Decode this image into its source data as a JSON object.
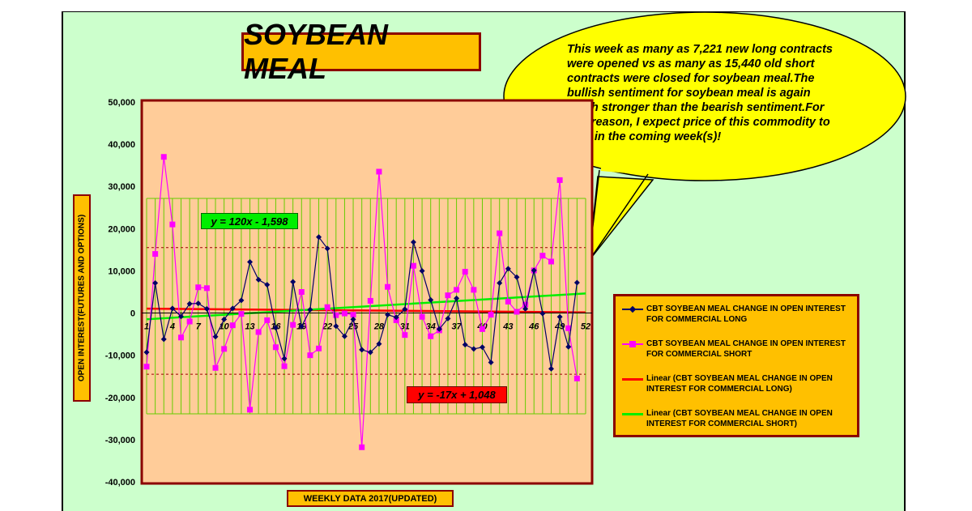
{
  "title": "SOYBEAN MEAL",
  "bubble_text": "This week as many as 7,221 new long contracts were opened vs as many as 15,440 old short contracts were closed for soybean meal.The bullish sentiment for soybean meal is again much stronger than the bearish sentiment.For this reason, I expect price of this commodity to rally in the coming week(s)!",
  "colors": {
    "background": "#ccffcc",
    "plot_area": "#ffcc99",
    "label_boxes": "#ffc000",
    "border": "#8b0000",
    "long_series": "#000066",
    "short_series": "#ff00ff",
    "long_trend": "#ff0000",
    "short_trend": "#00ee00",
    "grid": "#66cc00"
  },
  "chart_data": {
    "type": "line",
    "xlabel": "WEEKLY DATA 2017(UPDATED)",
    "ylabel": "OPEN INTEREST(FUTURES AND OPTIONS)",
    "ylim": [
      -40000,
      50000
    ],
    "yticks": [
      "50,000",
      "40,000",
      "30,000",
      "20,000",
      "10,000",
      "0",
      "-10,000",
      "-20,000",
      "-30,000",
      "-40,000"
    ],
    "ytick_values": [
      50000,
      40000,
      30000,
      20000,
      10000,
      0,
      -10000,
      -20000,
      -30000,
      -40000
    ],
    "x": [
      1,
      2,
      3,
      4,
      5,
      6,
      7,
      8,
      9,
      10,
      11,
      12,
      13,
      14,
      15,
      16,
      17,
      18,
      19,
      20,
      21,
      22,
      23,
      24,
      25,
      26,
      27,
      28,
      29,
      30,
      31,
      32,
      33,
      34,
      35,
      36,
      37,
      38,
      39,
      40,
      41,
      42,
      43,
      44,
      45,
      46,
      47,
      48,
      49,
      50,
      51,
      52
    ],
    "xtick_labels": [
      "1",
      "4",
      "7",
      "10",
      "13",
      "16",
      "19",
      "22",
      "25",
      "28",
      "31",
      "34",
      "37",
      "40",
      "43",
      "46",
      "49",
      "52"
    ],
    "xtick_values": [
      1,
      4,
      7,
      10,
      13,
      16,
      19,
      22,
      25,
      28,
      31,
      34,
      37,
      40,
      43,
      46,
      49,
      52
    ],
    "series": [
      {
        "name": "CBT SOYBEAN MEAL CHANGE IN OPEN INTEREST FOR COMMERCIAL LONG",
        "values": [
          -9300,
          7100,
          -6200,
          1100,
          -800,
          2200,
          2300,
          1000,
          -5600,
          -1500,
          1100,
          3000,
          12100,
          7900,
          6700,
          -3500,
          -10800,
          7400,
          -3200,
          800,
          18000,
          15300,
          -3100,
          -5500,
          -1500,
          -8700,
          -9300,
          -7300,
          -400,
          -1000,
          900,
          16800,
          10000,
          3100,
          -3800,
          -1300,
          3500,
          -7500,
          -8500,
          -8100,
          -11700,
          7100,
          10500,
          8500,
          1000,
          10100,
          -100,
          -13200,
          -900,
          -8000,
          7200,
          null
        ]
      },
      {
        "name": "CBT SOYBEAN MEAL CHANGE IN OPEN INTEREST FOR COMMERCIAL SHORT",
        "values": [
          -12700,
          14000,
          37000,
          21000,
          -5800,
          -2000,
          6100,
          5900,
          -13000,
          -8500,
          -2900,
          -200,
          -22900,
          -4500,
          -1700,
          -8100,
          -12600,
          -2800,
          5000,
          -10000,
          -8400,
          1400,
          -500,
          -100,
          -400,
          -31800,
          2900,
          33500,
          6200,
          -1700,
          -5200,
          11200,
          -900,
          -5500,
          -4100,
          4200,
          5500,
          9800,
          5500,
          -3800,
          -400,
          18900,
          2700,
          300,
          2000,
          10100,
          13600,
          12200,
          31500,
          -3600,
          -15500,
          null
        ]
      },
      {
        "name": "Linear (CBT SOYBEAN MEAL CHANGE IN OPEN INTEREST FOR COMMERCIAL LONG)",
        "equation": "y = -17x + 1,048",
        "slope": -17,
        "intercept": 1048
      },
      {
        "name": "Linear (CBT SOYBEAN MEAL CHANGE IN OPEN INTEREST FOR COMMERCIAL SHORT)",
        "equation": "y = 120x - 1,598",
        "slope": 120,
        "intercept": -1598
      }
    ],
    "reference_lines": [
      15500,
      -14500
    ],
    "grid": true,
    "legend_position": "right"
  }
}
